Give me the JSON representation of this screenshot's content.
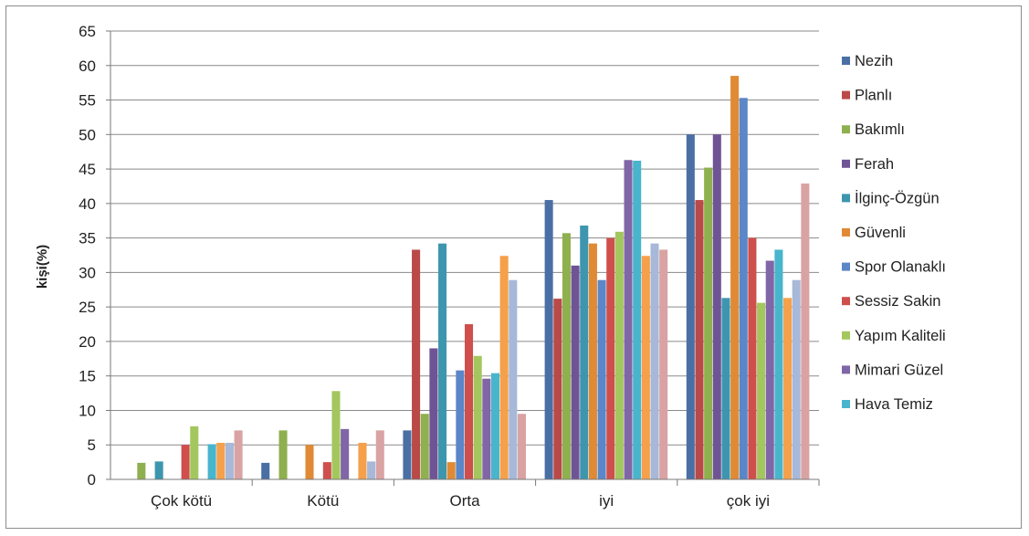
{
  "chart_data": {
    "type": "bar",
    "title": "",
    "xlabel": "",
    "ylabel": "kişi(%)",
    "ylim": [
      0,
      65
    ],
    "yticks": [
      0,
      5,
      10,
      15,
      20,
      25,
      30,
      35,
      40,
      45,
      50,
      55,
      60,
      65
    ],
    "grid": true,
    "legend_position": "right",
    "categories": [
      "Çok kötü",
      "Kötü",
      "Orta",
      "iyi",
      "çok iyi"
    ],
    "series": [
      {
        "name": "Nezih",
        "color": "#4a6fa5",
        "values": [
          0,
          2.4,
          7.1,
          40.5,
          50.0
        ]
      },
      {
        "name": "Planlı",
        "color": "#b94a48",
        "values": [
          0,
          0,
          33.3,
          26.2,
          40.5
        ]
      },
      {
        "name": "Bakımlı",
        "color": "#8fb04e",
        "values": [
          2.4,
          7.1,
          9.5,
          35.7,
          45.2
        ]
      },
      {
        "name": "Ferah",
        "color": "#6f5495",
        "values": [
          0,
          0,
          19.0,
          31.0,
          50.0
        ]
      },
      {
        "name": "İlginç-Özgün",
        "color": "#3d96ae",
        "values": [
          2.6,
          0,
          34.2,
          36.8,
          26.3
        ]
      },
      {
        "name": "Güvenli",
        "color": "#e08a35",
        "values": [
          0,
          5.0,
          2.5,
          34.2,
          58.5
        ]
      },
      {
        "name": "Spor Olanaklı",
        "color": "#5b86c7",
        "values": [
          0,
          0,
          15.8,
          28.9,
          55.3
        ]
      },
      {
        "name": "Sessiz Sakin",
        "color": "#cf4f4c",
        "values": [
          5.0,
          2.5,
          22.5,
          35.0,
          35.0
        ]
      },
      {
        "name": "Yapım Kaliteli",
        "color": "#a3c75e",
        "values": [
          7.7,
          12.8,
          17.9,
          35.9,
          25.6
        ]
      },
      {
        "name": "Mimari Güzel",
        "color": "#8066a6",
        "values": [
          0,
          7.3,
          14.6,
          46.3,
          31.7
        ]
      },
      {
        "name": "Hava Temiz",
        "color": "#48b5cc",
        "values": [
          5.1,
          0,
          15.4,
          46.2,
          33.3
        ]
      },
      {
        "color": "#f5a04a",
        "values": [
          5.3,
          5.3,
          32.4,
          32.4,
          26.3
        ]
      },
      {
        "color": "#a7b8d8",
        "values": [
          5.3,
          2.6,
          28.9,
          34.2,
          28.9
        ]
      },
      {
        "color": "#d9a3a3",
        "values": [
          7.1,
          7.1,
          9.5,
          33.3,
          42.9
        ]
      }
    ]
  }
}
